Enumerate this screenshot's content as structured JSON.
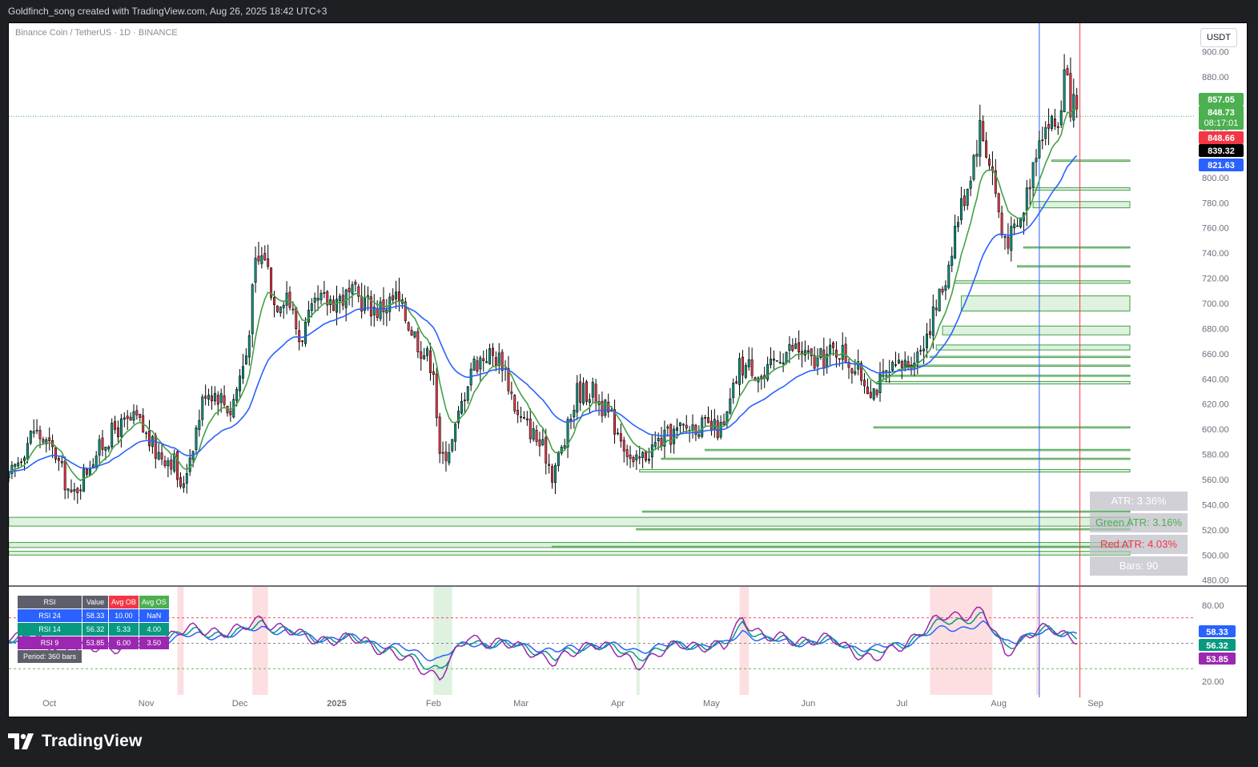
{
  "header": {
    "attribution": "Goldfinch_song created with TradingView.com, Aug 26, 2025 18:42 UTC+3"
  },
  "symbol": {
    "title": "Binance Coin / TetherUS · 1D · BINANCE",
    "currency": "USDT"
  },
  "footer": {
    "brand": "TradingView",
    "logo_icon": "tradingview-logo-icon"
  },
  "colors": {
    "up": "#089981",
    "down": "#f23645",
    "ema_fast": "#43a047",
    "ema_slow": "#2962ff",
    "zone": "#00c853",
    "rsi24": "#2962ff",
    "rsi14": "#089981",
    "rsi9": "#9c27b0"
  },
  "chart_data": {
    "type": "candlestick",
    "ylim": [
      476,
      910
    ],
    "y_ticks": [
      900,
      880,
      860,
      840,
      820,
      800,
      780,
      760,
      740,
      720,
      700,
      680,
      660,
      640,
      620,
      600,
      580,
      560,
      540,
      520,
      500,
      480
    ],
    "y_tick_labels": [
      "900.00",
      "880.00",
      "860.00",
      "840.00",
      "820.00",
      "800.00",
      "780.00",
      "760.00",
      "740.00",
      "720.00",
      "700.00",
      "680.00",
      "660.00",
      "640.00",
      "620.00",
      "600.00",
      "580.00",
      "560.00",
      "540.00",
      "520.00",
      "500.00",
      "480.00"
    ],
    "x_tick_labels": [
      "Oct",
      "Nov",
      "Dec",
      "2025",
      "Feb",
      "Mar",
      "Apr",
      "May",
      "Jun",
      "Jul",
      "Aug",
      "Sep"
    ],
    "x_tick_dates": [
      "2024-10-01",
      "2024-11-01",
      "2024-12-01",
      "2025-01-01",
      "2025-02-01",
      "2025-03-01",
      "2025-04-01",
      "2025-05-01",
      "2025-06-01",
      "2025-07-01",
      "2025-08-01",
      "2025-09-01"
    ],
    "date_range": [
      "2024-09-18",
      "2025-09-12"
    ],
    "close_path": [
      [
        "2024-09-18",
        560
      ],
      [
        "2024-09-26",
        600
      ],
      [
        "2024-10-03",
        580
      ],
      [
        "2024-10-08",
        545
      ],
      [
        "2024-10-15",
        578
      ],
      [
        "2024-10-22",
        600
      ],
      [
        "2024-10-29",
        608
      ],
      [
        "2024-11-04",
        582
      ],
      [
        "2024-11-10",
        575
      ],
      [
        "2024-11-12",
        550
      ],
      [
        "2024-11-16",
        590
      ],
      [
        "2024-11-20",
        632
      ],
      [
        "2024-11-24",
        628
      ],
      [
        "2024-11-28",
        615
      ],
      [
        "2024-12-03",
        660
      ],
      [
        "2024-12-06",
        730
      ],
      [
        "2024-12-09",
        740
      ],
      [
        "2024-12-12",
        700
      ],
      [
        "2024-12-16",
        710
      ],
      [
        "2024-12-20",
        672
      ],
      [
        "2024-12-26",
        700
      ],
      [
        "2025-01-01",
        704
      ],
      [
        "2025-01-07",
        706
      ],
      [
        "2025-01-14",
        695
      ],
      [
        "2025-01-20",
        704
      ],
      [
        "2025-01-25",
        680
      ],
      [
        "2025-01-28",
        665
      ],
      [
        "2025-02-01",
        650
      ],
      [
        "2025-02-03",
        575
      ],
      [
        "2025-02-07",
        590
      ],
      [
        "2025-02-10",
        620
      ],
      [
        "2025-02-13",
        650
      ],
      [
        "2025-02-18",
        660
      ],
      [
        "2025-02-23",
        655
      ],
      [
        "2025-02-28",
        610
      ],
      [
        "2025-03-04",
        600
      ],
      [
        "2025-03-09",
        580
      ],
      [
        "2025-03-11",
        565
      ],
      [
        "2025-03-15",
        590
      ],
      [
        "2025-03-19",
        630
      ],
      [
        "2025-03-24",
        630
      ],
      [
        "2025-03-28",
        615
      ],
      [
        "2025-04-02",
        596
      ],
      [
        "2025-04-06",
        570
      ],
      [
        "2025-04-09",
        578
      ],
      [
        "2025-04-14",
        590
      ],
      [
        "2025-04-20",
        598
      ],
      [
        "2025-04-26",
        604
      ],
      [
        "2025-05-01",
        600
      ],
      [
        "2025-05-05",
        600
      ],
      [
        "2025-05-10",
        650
      ],
      [
        "2025-05-14",
        650
      ],
      [
        "2025-05-18",
        640
      ],
      [
        "2025-05-23",
        660
      ],
      [
        "2025-05-28",
        665
      ],
      [
        "2025-06-03",
        652
      ],
      [
        "2025-06-08",
        660
      ],
      [
        "2025-06-11",
        664
      ],
      [
        "2025-06-16",
        648
      ],
      [
        "2025-06-20",
        636
      ],
      [
        "2025-06-22",
        632
      ],
      [
        "2025-06-26",
        642
      ],
      [
        "2025-07-01",
        650
      ],
      [
        "2025-07-06",
        660
      ],
      [
        "2025-07-11",
        690
      ],
      [
        "2025-07-15",
        720
      ],
      [
        "2025-07-18",
        760
      ],
      [
        "2025-07-22",
        795
      ],
      [
        "2025-07-26",
        840
      ],
      [
        "2025-07-30",
        805
      ],
      [
        "2025-08-02",
        755
      ],
      [
        "2025-08-05",
        752
      ],
      [
        "2025-08-08",
        765
      ],
      [
        "2025-08-11",
        800
      ],
      [
        "2025-08-14",
        838
      ],
      [
        "2025-08-17",
        843
      ],
      [
        "2025-08-20",
        842
      ],
      [
        "2025-08-22",
        880
      ],
      [
        "2025-08-24",
        860
      ],
      [
        "2025-08-26",
        848.73
      ]
    ],
    "series": [
      {
        "key": "ema_fast"
      },
      {
        "key": "ema_slow"
      }
    ],
    "price_labels": [
      {
        "value": 857.05,
        "text": "857.05",
        "color": "#4caf50"
      },
      {
        "value": 848.73,
        "text": "848.73",
        "sub": "08:17:01",
        "color": "#4caf50"
      },
      {
        "value": 848.66,
        "text": "848.66",
        "color": "#f23645"
      },
      {
        "value": 839.32,
        "text": "839.32",
        "color": "#000000"
      },
      {
        "value": 821.63,
        "text": "821.63",
        "color": "#2962ff"
      }
    ],
    "demand_zones": [
      {
        "start": "2025-08-18",
        "top": 814,
        "bottom": 813
      },
      {
        "start": "2025-08-12",
        "top": 792,
        "bottom": 790
      },
      {
        "start": "2025-08-12",
        "top": 781,
        "bottom": 776
      },
      {
        "start": "2025-08-09",
        "top": 745,
        "bottom": 744
      },
      {
        "start": "2025-08-07",
        "top": 730,
        "bottom": 729
      },
      {
        "start": "2025-07-18",
        "top": 718,
        "bottom": 716
      },
      {
        "start": "2025-07-20",
        "top": 706,
        "bottom": 694
      },
      {
        "start": "2025-07-14",
        "top": 682,
        "bottom": 675
      },
      {
        "start": "2025-07-12",
        "top": 667,
        "bottom": 663
      },
      {
        "start": "2025-07-10",
        "top": 658,
        "bottom": 657
      },
      {
        "start": "2025-07-02",
        "top": 651,
        "bottom": 650
      },
      {
        "start": "2025-06-24",
        "top": 643,
        "bottom": 642
      },
      {
        "start": "2025-06-23",
        "top": 638,
        "bottom": 636
      },
      {
        "start": "2025-06-22",
        "top": 602,
        "bottom": 601
      },
      {
        "start": "2025-04-29",
        "top": 584,
        "bottom": 583
      },
      {
        "start": "2025-04-15",
        "top": 577,
        "bottom": 576
      },
      {
        "start": "2025-04-08",
        "top": 568,
        "bottom": 566
      },
      {
        "start": "2025-04-09",
        "top": 535,
        "bottom": 534
      },
      {
        "start": "2024-09-18",
        "top": 530,
        "bottom": 523
      },
      {
        "start": "2025-04-07",
        "top": 521,
        "bottom": 520
      },
      {
        "start": "2024-09-18",
        "top": 510,
        "bottom": 506
      },
      {
        "start": "2025-03-11",
        "top": 507,
        "bottom": 506
      },
      {
        "start": "2024-09-18",
        "top": 503,
        "bottom": 500
      }
    ],
    "vertical_markers": [
      {
        "date": "2025-08-14",
        "color": "#2962ff"
      },
      {
        "date": "2025-08-27",
        "color": "#f23645"
      }
    ],
    "atr_panel": [
      {
        "label": "ATR: 3.36%",
        "color": "#ffffff"
      },
      {
        "label": "Green ATR: 3.16%",
        "color": "#4caf50"
      },
      {
        "label": "Red ATR: 4.03%",
        "color": "#f23645"
      },
      {
        "label": "Bars: 90",
        "color": "#ffffff"
      }
    ],
    "rsi": {
      "ylim": [
        10,
        95
      ],
      "y_ticks": [
        80,
        20
      ],
      "y_tick_labels": [
        "80.00",
        "20.00"
      ],
      "overbought": 70,
      "mid": 50,
      "oversold": 30,
      "table": {
        "headers": [
          "RSI",
          "Value",
          "Avg OB",
          "Avg OS"
        ],
        "rows": [
          {
            "name": "RSI 24",
            "value": "58.33",
            "ob": "10.00",
            "os": "NaN",
            "color": "#2962ff"
          },
          {
            "name": "RSI 14",
            "value": "56.32",
            "ob": "5.33",
            "os": "4.00",
            "color": "#089981"
          },
          {
            "name": "RSI 9",
            "value": "53.85",
            "ob": "6.00",
            "os": "3.50",
            "color": "#9c27b0"
          }
        ],
        "period": "Period: 360 bars"
      },
      "labels": [
        {
          "value": 58.33,
          "text": "58.33",
          "color": "#2962ff"
        },
        {
          "value": 56.32,
          "text": "56.32",
          "color": "#089981"
        },
        {
          "value": 53.85,
          "text": "53.85",
          "color": "#9c27b0"
        }
      ],
      "ob_spans": [
        [
          "2024-11-11",
          "2024-11-13"
        ],
        [
          "2024-12-05",
          "2024-12-10"
        ],
        [
          "2025-05-10",
          "2025-05-13"
        ],
        [
          "2025-07-10",
          "2025-07-30"
        ],
        [
          "2025-08-13",
          "2025-08-14"
        ]
      ],
      "os_spans": [
        [
          "2025-02-01",
          "2025-02-07"
        ],
        [
          "2025-04-07",
          "2025-04-08"
        ]
      ],
      "series": [
        {
          "name": "RSI 24",
          "color": "#2962ff",
          "points": [
            [
              "2024-09-18",
              54
            ],
            [
              "2024-10-08",
              50
            ],
            [
              "2024-11-01",
              51
            ],
            [
              "2024-11-12",
              55
            ],
            [
              "2024-12-01",
              57
            ],
            [
              "2024-12-08",
              63
            ],
            [
              "2024-12-22",
              55
            ],
            [
              "2025-01-10",
              53
            ],
            [
              "2025-02-03",
              38
            ],
            [
              "2025-02-12",
              50
            ],
            [
              "2025-03-05",
              48
            ],
            [
              "2025-03-12",
              43
            ],
            [
              "2025-03-24",
              49
            ],
            [
              "2025-04-07",
              45
            ],
            [
              "2025-04-22",
              49
            ],
            [
              "2025-05-05",
              48
            ],
            [
              "2025-05-11",
              60
            ],
            [
              "2025-05-18",
              52
            ],
            [
              "2025-06-10",
              50
            ],
            [
              "2025-06-22",
              45
            ],
            [
              "2025-07-06",
              53
            ],
            [
              "2025-07-15",
              62
            ],
            [
              "2025-07-27",
              64
            ],
            [
              "2025-08-03",
              52
            ],
            [
              "2025-08-10",
              55
            ],
            [
              "2025-08-18",
              59
            ],
            [
              "2025-08-26",
              58.33
            ]
          ]
        },
        {
          "name": "RSI 14",
          "color": "#089981",
          "points": [
            [
              "2024-09-18",
              55
            ],
            [
              "2024-10-08",
              48
            ],
            [
              "2024-11-01",
              50
            ],
            [
              "2024-11-12",
              58
            ],
            [
              "2024-12-01",
              58
            ],
            [
              "2024-12-08",
              66
            ],
            [
              "2024-12-22",
              55
            ],
            [
              "2025-01-10",
              52
            ],
            [
              "2025-02-03",
              30
            ],
            [
              "2025-02-12",
              52
            ],
            [
              "2025-03-05",
              46
            ],
            [
              "2025-03-12",
              38
            ],
            [
              "2025-03-24",
              50
            ],
            [
              "2025-04-07",
              40
            ],
            [
              "2025-04-22",
              49
            ],
            [
              "2025-05-05",
              47
            ],
            [
              "2025-05-11",
              66
            ],
            [
              "2025-05-18",
              53
            ],
            [
              "2025-06-10",
              51
            ],
            [
              "2025-06-22",
              41
            ],
            [
              "2025-07-06",
              55
            ],
            [
              "2025-07-15",
              68
            ],
            [
              "2025-07-27",
              70
            ],
            [
              "2025-08-03",
              48
            ],
            [
              "2025-08-10",
              55
            ],
            [
              "2025-08-18",
              61
            ],
            [
              "2025-08-26",
              56.32
            ]
          ]
        },
        {
          "name": "RSI 9",
          "color": "#9c27b0",
          "points": [
            [
              "2024-09-18",
              57
            ],
            [
              "2024-10-08",
              45
            ],
            [
              "2024-11-01",
              49
            ],
            [
              "2024-11-12",
              60
            ],
            [
              "2024-12-01",
              60
            ],
            [
              "2024-12-08",
              69
            ],
            [
              "2024-12-22",
              54
            ],
            [
              "2025-01-10",
              52
            ],
            [
              "2025-02-03",
              24
            ],
            [
              "2025-02-12",
              55
            ],
            [
              "2025-03-05",
              44
            ],
            [
              "2025-03-12",
              34
            ],
            [
              "2025-03-24",
              52
            ],
            [
              "2025-04-07",
              34
            ],
            [
              "2025-04-22",
              50
            ],
            [
              "2025-05-05",
              46
            ],
            [
              "2025-05-11",
              71
            ],
            [
              "2025-05-18",
              54
            ],
            [
              "2025-06-10",
              52
            ],
            [
              "2025-06-22",
              36
            ],
            [
              "2025-07-06",
              57
            ],
            [
              "2025-07-15",
              72
            ],
            [
              "2025-07-27",
              74
            ],
            [
              "2025-08-03",
              43
            ],
            [
              "2025-08-10",
              56
            ],
            [
              "2025-08-18",
              62
            ],
            [
              "2025-08-26",
              53.85
            ]
          ]
        }
      ]
    }
  }
}
